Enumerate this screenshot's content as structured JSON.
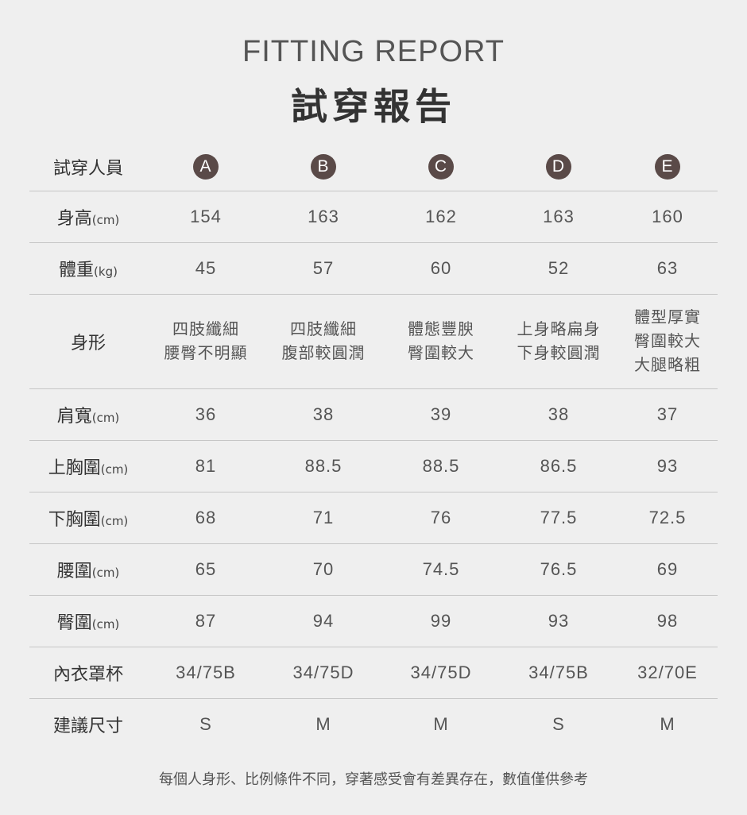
{
  "header": {
    "subtitle": "FITTING REPORT",
    "title": "試穿報告"
  },
  "badge_color": "#5a4a48",
  "table": {
    "head_label": "試穿人員",
    "testers": [
      "A",
      "B",
      "C",
      "D",
      "E"
    ],
    "rows": [
      {
        "label": "身高",
        "unit": "(cm)",
        "values": [
          "154",
          "163",
          "162",
          "163",
          "160"
        ]
      },
      {
        "label": "體重",
        "unit": "(kg)",
        "values": [
          "45",
          "57",
          "60",
          "52",
          "63"
        ]
      },
      {
        "label": "身形",
        "unit": "",
        "values": [
          "四肢纖細\n腰臀不明顯",
          "四肢纖細\n腹部較圓潤",
          "體態豐腴\n臀圍較大",
          "上身略扁身\n下身較圓潤",
          "體型厚實\n臀圍較大\n大腿略粗"
        ]
      },
      {
        "label": "肩寬",
        "unit": "(cm)",
        "values": [
          "36",
          "38",
          "39",
          "38",
          "37"
        ]
      },
      {
        "label": "上胸圍",
        "unit": "(cm)",
        "values": [
          "81",
          "88.5",
          "88.5",
          "86.5",
          "93"
        ]
      },
      {
        "label": "下胸圍",
        "unit": "(cm)",
        "values": [
          "68",
          "71",
          "76",
          "77.5",
          "72.5"
        ]
      },
      {
        "label": "腰圍",
        "unit": "(cm)",
        "values": [
          "65",
          "70",
          "74.5",
          "76.5",
          "69"
        ]
      },
      {
        "label": "臀圍",
        "unit": "(cm)",
        "values": [
          "87",
          "94",
          "99",
          "93",
          "98"
        ]
      },
      {
        "label": "內衣罩杯",
        "unit": "",
        "values": [
          "34/75B",
          "34/75D",
          "34/75D",
          "34/75B",
          "32/70E"
        ]
      },
      {
        "label": "建議尺寸",
        "unit": "",
        "values": [
          "S",
          "M",
          "M",
          "S",
          "M"
        ]
      }
    ]
  },
  "footer": "每個人身形、比例條件不同，穿著感受會有差異存在，數值僅供參考"
}
